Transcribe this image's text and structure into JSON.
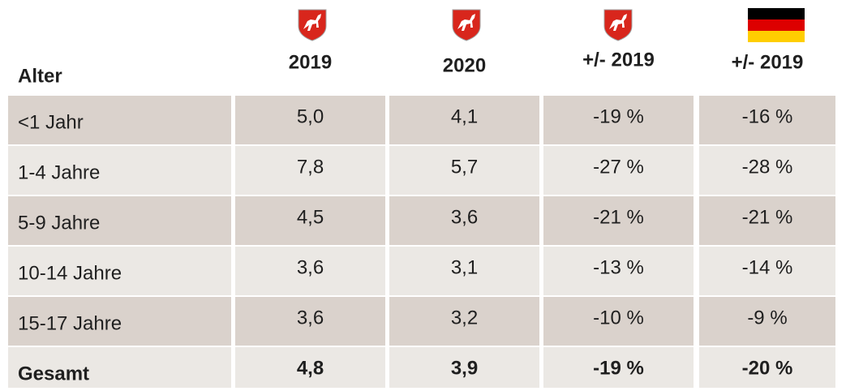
{
  "table": {
    "headers": [
      "Alter",
      "2019",
      "2020",
      "+/- 2019",
      "+/- 2019"
    ],
    "rows": [
      [
        "<1 Jahr",
        "5,0",
        "4,1",
        "-19 %",
        "-16 %"
      ],
      [
        "1-4 Jahre",
        "7,8",
        "5,7",
        "-27 %",
        "-28 %"
      ],
      [
        "5-9 Jahre",
        "4,5",
        "3,6",
        "-21 %",
        "-21 %"
      ],
      [
        "10-14 Jahre",
        "3,6",
        "3,1",
        "-13 %",
        "-14 %"
      ],
      [
        "15-17 Jahre",
        "3,6",
        "3,2",
        "-10 %",
        "-9 %"
      ],
      [
        "Gesamt",
        "4,8",
        "3,9",
        "-19 %",
        "-20 %"
      ]
    ]
  }
}
